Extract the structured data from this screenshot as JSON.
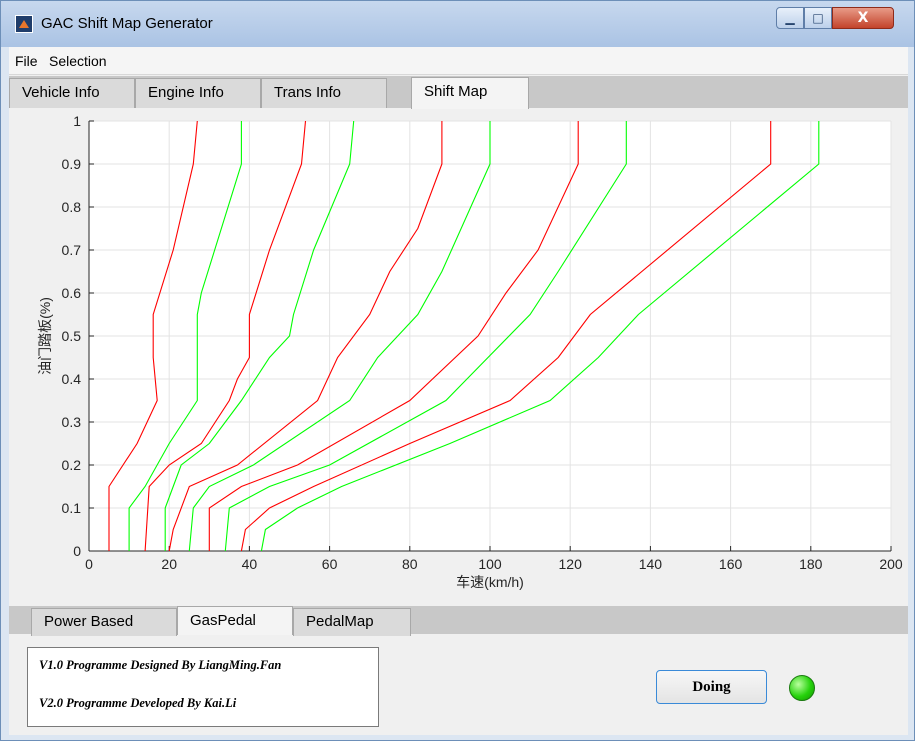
{
  "window": {
    "title": "GAC Shift Map Generator",
    "minimize_glyph": "▁",
    "maximize_glyph": "□",
    "close_glyph": "X"
  },
  "menu": [
    "File",
    "Selection"
  ],
  "main_tabs": [
    {
      "label": "Vehicle Info",
      "active": false
    },
    {
      "label": "Engine Info",
      "active": false
    },
    {
      "label": "Trans Info",
      "active": false
    },
    {
      "label": "Shift Map",
      "active": true
    }
  ],
  "sub_tabs": [
    {
      "label": "Power Based",
      "active": false
    },
    {
      "label": "GasPedal",
      "active": true
    },
    {
      "label": "PedalMap",
      "active": false
    }
  ],
  "info": {
    "line1": "V1.0 Programme Designed By LiangMing.Fan",
    "line2": "V2.0 Programme Developed By Kai.Li"
  },
  "status": {
    "button_label": "Doing",
    "led_color": "#26d20c"
  },
  "chart_data": {
    "type": "line",
    "title": "",
    "xlabel": "车速(km/h)",
    "ylabel": "油门踏板(%)",
    "xlim": [
      0,
      200
    ],
    "ylim": [
      0,
      1
    ],
    "xticks": [
      0,
      20,
      40,
      60,
      80,
      100,
      120,
      140,
      160,
      180,
      200
    ],
    "yticks": [
      0,
      0.1,
      0.2,
      0.3,
      0.4,
      0.5,
      0.6,
      0.7,
      0.8,
      0.9,
      1
    ],
    "grid": true,
    "colors": {
      "upshift": "#ff0000",
      "downshift": "#00ff00"
    },
    "series": [
      {
        "color": "red",
        "x": [
          5,
          5,
          12,
          17,
          16,
          16,
          21,
          26,
          27
        ],
        "y": [
          0,
          0.15,
          0.25,
          0.35,
          0.45,
          0.55,
          0.7,
          0.9,
          1
        ]
      },
      {
        "color": "green",
        "x": [
          10,
          10,
          14,
          20,
          27,
          27,
          28,
          38,
          38
        ],
        "y": [
          0,
          0.1,
          0.15,
          0.25,
          0.35,
          0.55,
          0.6,
          0.9,
          1
        ]
      },
      {
        "color": "red",
        "x": [
          14,
          15,
          20,
          28,
          35,
          37,
          40,
          40,
          45,
          53,
          54
        ],
        "y": [
          0,
          0.15,
          0.2,
          0.25,
          0.35,
          0.4,
          0.45,
          0.55,
          0.7,
          0.9,
          1
        ]
      },
      {
        "color": "green",
        "x": [
          19,
          19,
          23,
          30,
          38,
          45,
          50,
          51,
          56,
          65,
          66
        ],
        "y": [
          0,
          0.1,
          0.2,
          0.25,
          0.35,
          0.45,
          0.5,
          0.55,
          0.7,
          0.9,
          1
        ]
      },
      {
        "color": "red",
        "x": [
          20,
          21,
          25,
          37,
          57,
          62,
          70,
          75,
          82,
          88,
          88
        ],
        "y": [
          0,
          0.05,
          0.15,
          0.2,
          0.35,
          0.45,
          0.55,
          0.65,
          0.75,
          0.9,
          1
        ]
      },
      {
        "color": "green",
        "x": [
          25,
          26,
          30,
          41,
          65,
          72,
          82,
          88,
          100,
          100
        ],
        "y": [
          0,
          0.1,
          0.15,
          0.2,
          0.35,
          0.45,
          0.55,
          0.65,
          0.9,
          1
        ]
      },
      {
        "color": "red",
        "x": [
          30,
          30,
          38,
          52,
          80,
          97,
          104,
          112,
          122,
          122
        ],
        "y": [
          0,
          0.1,
          0.15,
          0.2,
          0.35,
          0.5,
          0.6,
          0.7,
          0.9,
          1
        ]
      },
      {
        "color": "green",
        "x": [
          34,
          35,
          45,
          60,
          89,
          110,
          117,
          134,
          134
        ],
        "y": [
          0,
          0.1,
          0.15,
          0.2,
          0.35,
          0.55,
          0.65,
          0.9,
          1
        ]
      },
      {
        "color": "red",
        "x": [
          38,
          39,
          45,
          56,
          80,
          105,
          117,
          125,
          170,
          170
        ],
        "y": [
          0,
          0.05,
          0.1,
          0.15,
          0.25,
          0.35,
          0.45,
          0.55,
          0.9,
          1
        ]
      },
      {
        "color": "green",
        "x": [
          43,
          44,
          52,
          63,
          90,
          115,
          127,
          137,
          182,
          182
        ],
        "y": [
          0,
          0.05,
          0.1,
          0.15,
          0.25,
          0.35,
          0.45,
          0.55,
          0.9,
          1
        ]
      }
    ]
  }
}
